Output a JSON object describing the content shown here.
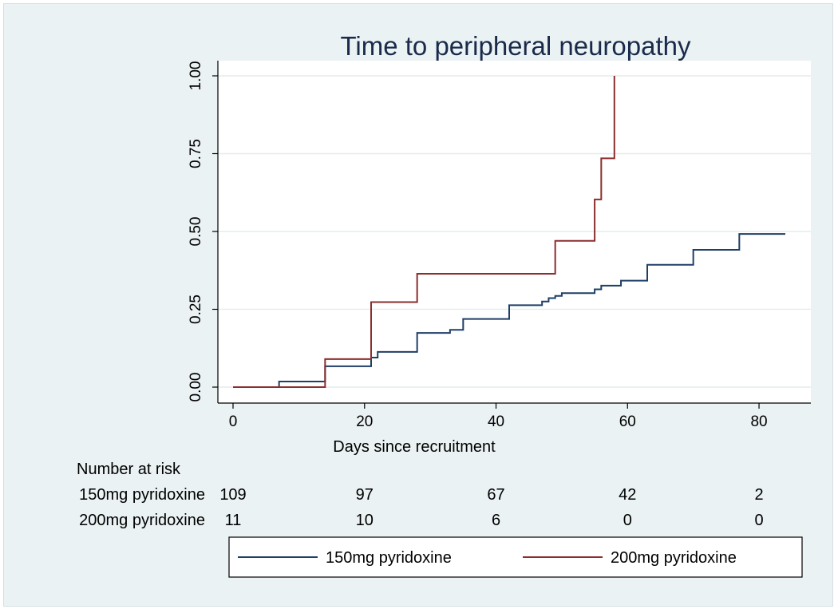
{
  "chart_data": {
    "type": "line",
    "title": "Time to peripheral neuropathy",
    "xlabel": "Days since recruitment",
    "ylabel": "",
    "xlim": [
      0,
      85
    ],
    "ylim": [
      0,
      1
    ],
    "x_ticks": [
      0,
      20,
      40,
      60,
      80
    ],
    "x_tick_labels": [
      "0",
      "20",
      "40",
      "60",
      "80"
    ],
    "y_ticks": [
      0,
      0.25,
      0.5,
      0.75,
      1
    ],
    "y_tick_labels": [
      "0.00",
      "0.25",
      "0.50",
      "0.75",
      "1.00"
    ],
    "grid": true,
    "step": true,
    "legend_position": "bottom",
    "series": [
      {
        "name": "150mg pyridoxine",
        "color": "#1f3f66",
        "x": [
          0,
          7,
          14,
          21,
          22,
          28,
          33,
          35,
          42,
          47,
          48,
          49,
          50,
          55,
          56,
          59,
          63,
          70,
          77,
          84
        ],
        "y": [
          0,
          0.018,
          0.067,
          0.095,
          0.113,
          0.174,
          0.184,
          0.219,
          0.263,
          0.275,
          0.286,
          0.293,
          0.302,
          0.314,
          0.326,
          0.342,
          0.393,
          0.441,
          0.492,
          0.492
        ]
      },
      {
        "name": "200mg pyridoxine",
        "color": "#8b2e2e",
        "x": [
          0,
          14,
          21,
          28,
          49,
          55,
          56,
          58
        ],
        "y": [
          0,
          0.09,
          0.273,
          0.364,
          0.47,
          0.603,
          0.735,
          1.0
        ]
      }
    ]
  },
  "risk_table": {
    "header": "Number at risk",
    "rows": [
      {
        "label": "150mg pyridoxine",
        "values": [
          "109",
          "97",
          "67",
          "42",
          "2"
        ]
      },
      {
        "label": "200mg pyridoxine",
        "values": [
          "11",
          "10",
          "6",
          "0",
          "0"
        ]
      }
    ]
  },
  "colors": {
    "background": "#eaf2f3",
    "plot_background": "#ffffff",
    "grid": "#e6ecec"
  }
}
